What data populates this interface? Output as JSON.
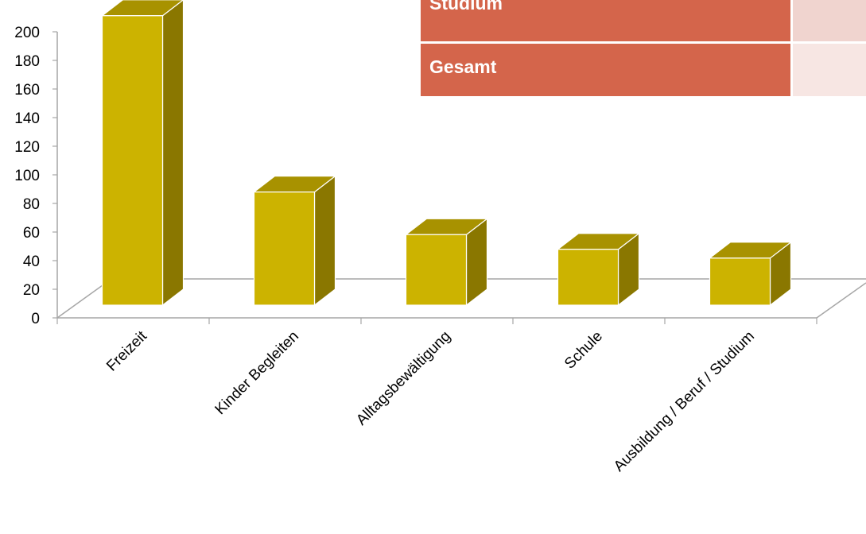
{
  "chart_data": {
    "type": "bar",
    "style": "3d",
    "categories": [
      "Freizeit",
      "Kinder Begleiten",
      "Alltagsbewältigung",
      "Schule",
      "Ausbildung / Beruf / Studium"
    ],
    "values": [
      197,
      77,
      48,
      38,
      32
    ],
    "ylim": [
      0,
      200
    ],
    "yticks": [
      0,
      20,
      40,
      60,
      80,
      100,
      120,
      140,
      160,
      180,
      200
    ],
    "colors": {
      "bar_front": "#ccb300",
      "bar_side": "#8a7700",
      "bar_top": "#a89200",
      "axis": "#a6a6a6"
    }
  },
  "table": {
    "rows": [
      {
        "label": "Studium",
        "label_color": "#d4654b",
        "cell_color": "#f0d4cf"
      },
      {
        "label": "Gesamt",
        "label_color": "#d4654b",
        "cell_color": "#f7e6e3"
      }
    ]
  }
}
